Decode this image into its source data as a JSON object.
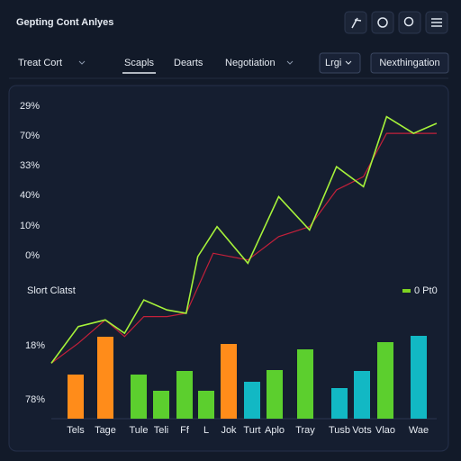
{
  "header": {
    "title": "Gepting Cont Anlyes"
  },
  "toolbar": {
    "dropdown": "Treat Cort",
    "tabs": [
      "Scapls",
      "Dearts",
      "Negotiation"
    ],
    "select": "Lrgi",
    "button": "Nexthingation"
  },
  "chart_data": [
    {
      "type": "line",
      "axis_labels": [
        "29%",
        "70%",
        "33%",
        "40%",
        "10%",
        "0%"
      ],
      "xlim": [
        0,
        100
      ],
      "ylim": [
        0,
        100
      ],
      "series": [
        {
          "color": "#a6f23a",
          "x": [
            0,
            7,
            14,
            19,
            24,
            30,
            35,
            38,
            43,
            51,
            59,
            67,
            74,
            81,
            87,
            94,
            100
          ],
          "values": [
            18,
            29,
            31,
            27,
            37,
            34,
            33,
            50,
            59,
            48,
            68,
            58,
            77,
            71,
            92,
            87,
            90
          ]
        },
        {
          "color": "#c4203a",
          "x": [
            0,
            7,
            14,
            19,
            24,
            30,
            35,
            42,
            51,
            59,
            67,
            74,
            81,
            87,
            94,
            100
          ],
          "values": [
            18,
            24,
            31,
            26,
            32,
            32,
            33,
            51,
            49,
            56,
            59,
            70,
            74,
            87,
            87,
            87
          ]
        }
      ]
    },
    {
      "type": "bar",
      "title": "Slort Clatst",
      "legend": "0 Pt0",
      "legend_color": "#7ed321",
      "axis_labels": [
        "18%",
        "78%"
      ],
      "ylim": [
        0,
        100
      ],
      "categories": [
        "Tels",
        "Tage",
        "Tule",
        "Teli",
        "Ff",
        "L",
        "Jok",
        "Turt",
        "Aplo",
        "Tray",
        "Tusb",
        "Vots",
        "Vlao",
        "Wae"
      ],
      "values": [
        49,
        91,
        49,
        31,
        53,
        31,
        83,
        41,
        54,
        77,
        34,
        53,
        85,
        92
      ],
      "colors": [
        "#ff8c1a",
        "#ff8c1a",
        "#5ccf2e",
        "#5ccf2e",
        "#5ccf2e",
        "#5ccf2e",
        "#ff8c1a",
        "#12b8c4",
        "#5ccf2e",
        "#5ccf2e",
        "#12b8c4",
        "#12b8c4",
        "#5ccf2e",
        "#12b8c4"
      ]
    }
  ]
}
